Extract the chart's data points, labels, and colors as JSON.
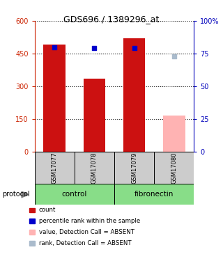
{
  "title": "GDS696 / 1389296_at",
  "samples": [
    "GSM17077",
    "GSM17078",
    "GSM17079",
    "GSM17080"
  ],
  "bar_values": [
    490,
    335,
    520,
    165
  ],
  "bar_colors": [
    "#cc1111",
    "#cc1111",
    "#cc1111",
    "#ffb3b3"
  ],
  "rank_values": [
    80,
    79,
    79,
    73
  ],
  "rank_colors": [
    "#0000cc",
    "#0000cc",
    "#0000cc",
    "#aabbcc"
  ],
  "protocol_groups": [
    {
      "label": "control",
      "span": [
        0,
        2
      ]
    },
    {
      "label": "fibronectin",
      "span": [
        2,
        4
      ]
    }
  ],
  "protocol_color": "#88dd88",
  "sample_bg_color": "#cccccc",
  "ylim_left": [
    0,
    600
  ],
  "ylim_right": [
    0,
    100
  ],
  "yticks_left": [
    0,
    150,
    300,
    450,
    600
  ],
  "yticks_right": [
    0,
    25,
    50,
    75,
    100
  ],
  "ytick_labels_right": [
    "0",
    "25",
    "50",
    "75",
    "100%"
  ],
  "left_axis_color": "#cc2200",
  "right_axis_color": "#0000bb",
  "legend_items": [
    {
      "label": "count",
      "color": "#cc1111"
    },
    {
      "label": "percentile rank within the sample",
      "color": "#0000cc"
    },
    {
      "label": "value, Detection Call = ABSENT",
      "color": "#ffb3b3"
    },
    {
      "label": "rank, Detection Call = ABSENT",
      "color": "#aabbcc"
    }
  ],
  "bar_width": 0.55
}
